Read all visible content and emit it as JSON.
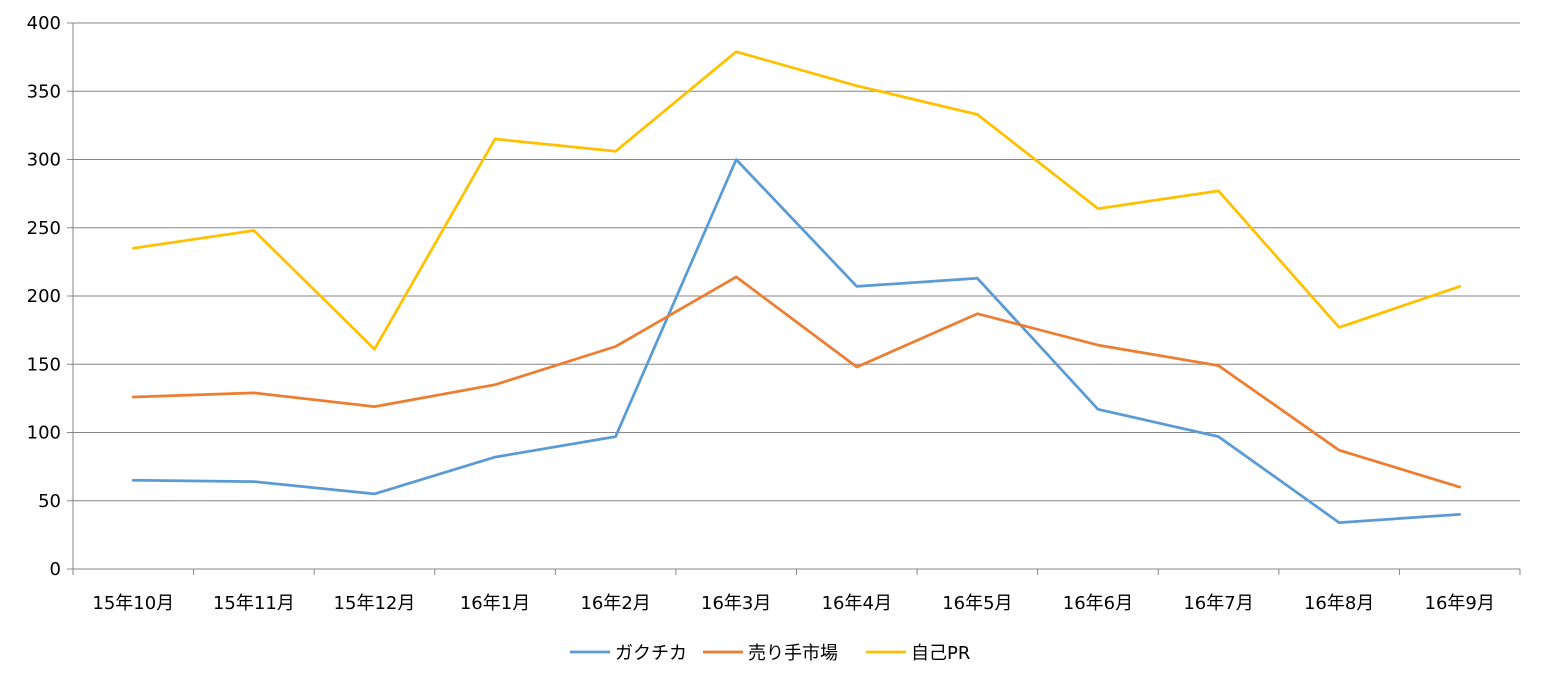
{
  "chart_data": {
    "type": "line",
    "title": "",
    "xlabel": "",
    "ylabel": "",
    "categories": [
      "15年10月",
      "15年11月",
      "15年12月",
      "16年1月",
      "16年2月",
      "16年3月",
      "16年4月",
      "16年5月",
      "16年6月",
      "16年7月",
      "16年8月",
      "16年9月"
    ],
    "ylim": [
      0,
      400
    ],
    "yticks": [
      0,
      50,
      100,
      150,
      200,
      250,
      300,
      350,
      400
    ],
    "grid": true,
    "legend_position": "bottom",
    "series": [
      {
        "name": "ガクチカ",
        "color": "#5b9bd5",
        "values": [
          65,
          64,
          55,
          82,
          97,
          300,
          207,
          213,
          117,
          97,
          34,
          40
        ]
      },
      {
        "name": "売り手市場",
        "color": "#ed7d31",
        "values": [
          126,
          129,
          119,
          135,
          163,
          214,
          148,
          187,
          164,
          149,
          87,
          60
        ]
      },
      {
        "name": "自己PR",
        "color": "#ffc000",
        "values": [
          235,
          248,
          161,
          315,
          306,
          379,
          354,
          333,
          264,
          277,
          177,
          207
        ]
      }
    ]
  }
}
